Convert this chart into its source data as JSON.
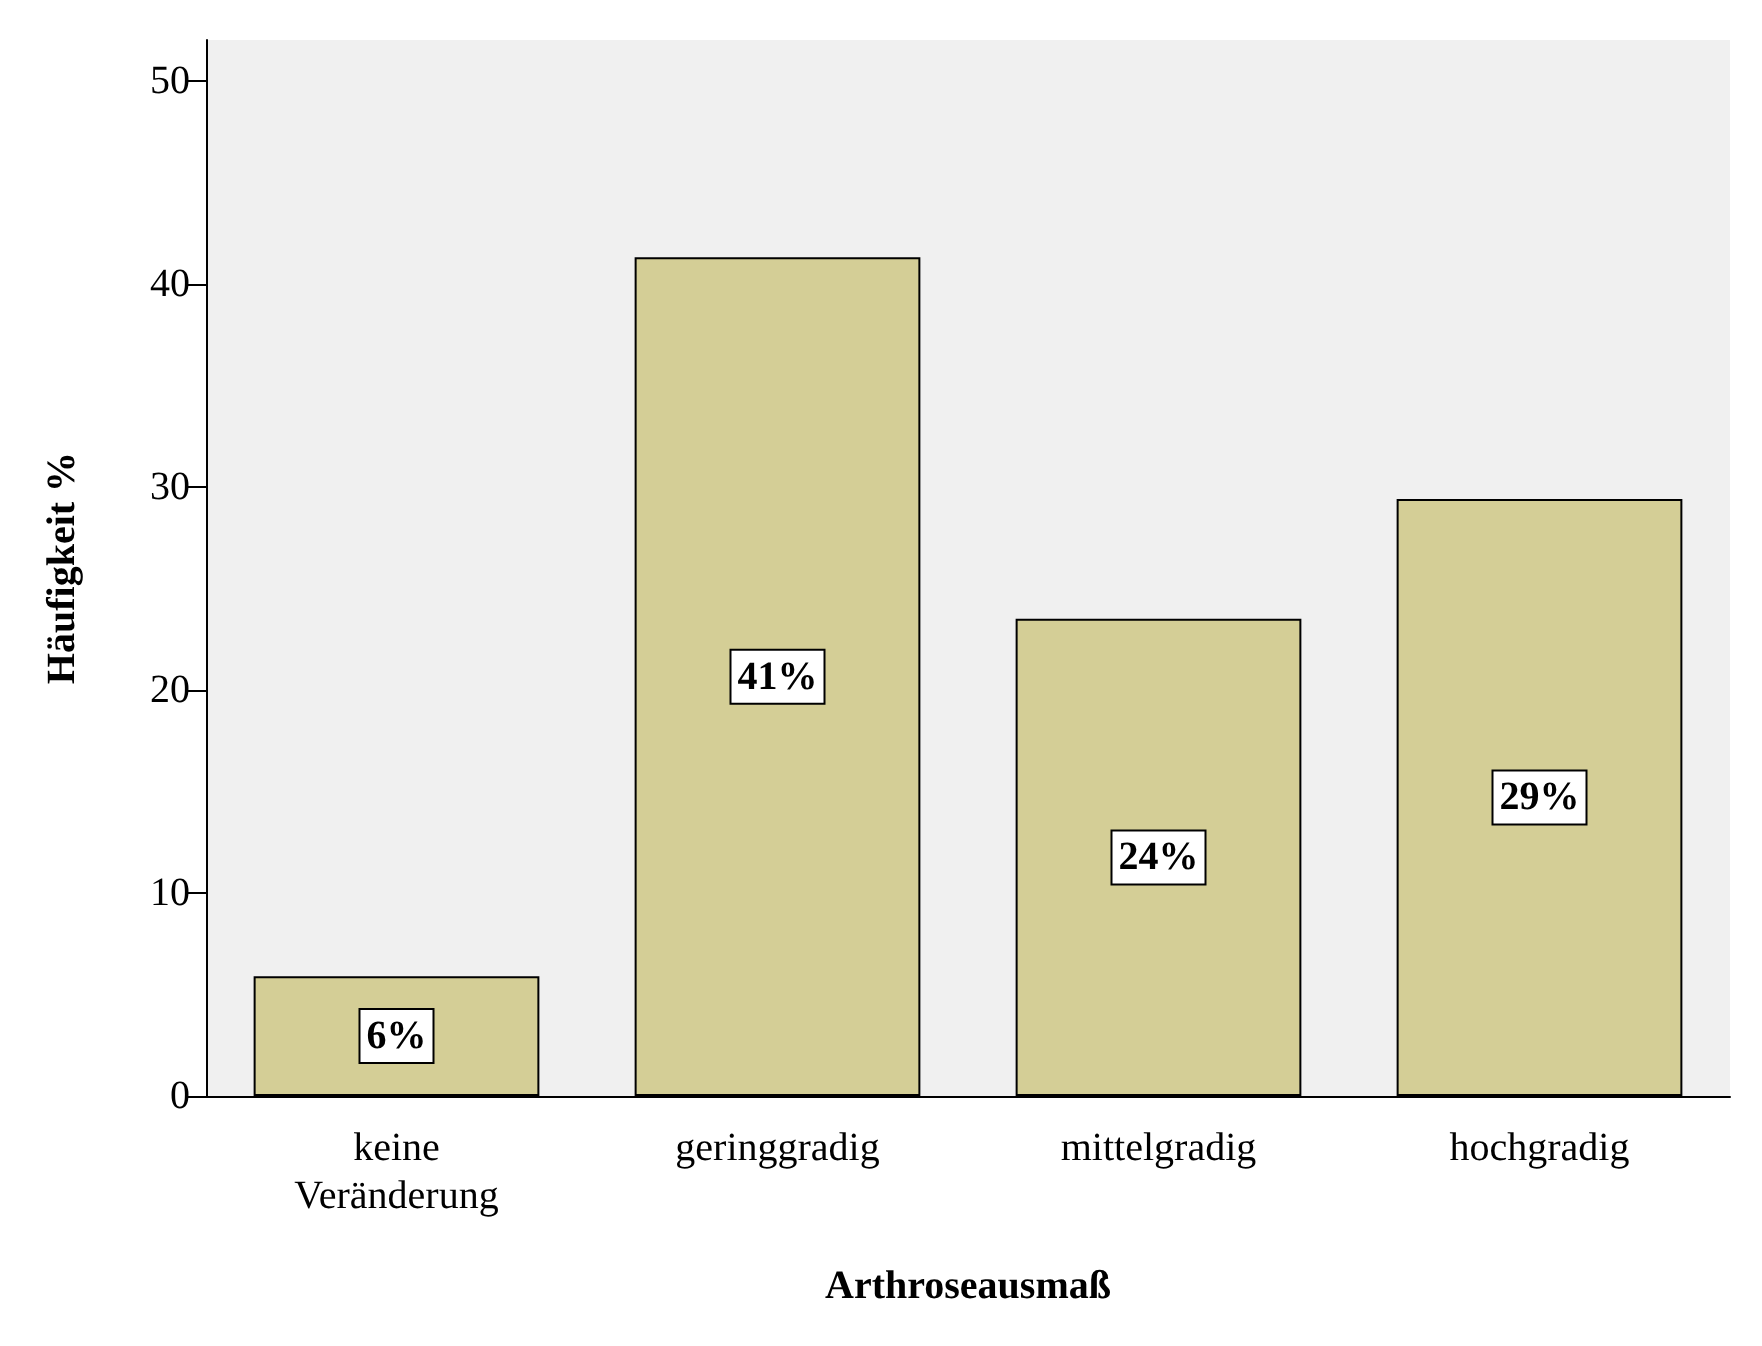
{
  "chart_data": {
    "type": "bar",
    "xlabel": "Arthroseausmaß",
    "ylabel": "Häufigkeit %",
    "categories": [
      "keine\nVeränderung",
      "geringgradig",
      "mittelgradig",
      "hochgradig"
    ],
    "values": [
      5.9,
      41.3,
      23.5,
      29.4
    ],
    "color": "#d4ce96",
    "value_labels": [
      "6%",
      "41%",
      "24%",
      "29%"
    ],
    "ylim": [
      0,
      52
    ],
    "yticks": [
      0,
      10,
      20,
      30,
      40,
      50
    ],
    "grid": false
  }
}
